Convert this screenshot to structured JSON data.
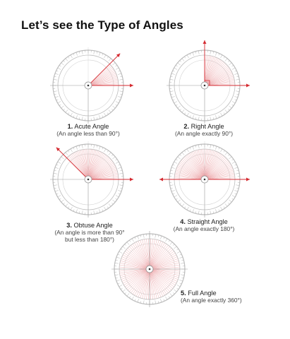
{
  "page": {
    "title": "Let’s see the Type of Angles"
  },
  "colors": {
    "ring": "#bcbcbc",
    "shade": "#e8969a",
    "ray": "#d42a30",
    "axis": "#9a9a9a"
  },
  "angles": [
    {
      "number": "1.",
      "name": "Acute Angle",
      "desc": "(An angle less than 90°)",
      "desc2": "",
      "degrees": 45
    },
    {
      "number": "2.",
      "name": "Right Angle",
      "desc": "(An angle exactly 90°)",
      "desc2": "",
      "degrees": 90
    },
    {
      "number": "3.",
      "name": "Obtuse Angle",
      "desc": "(An angle is more than  90°",
      "desc2": "but less than 180°)",
      "degrees": 135
    },
    {
      "number": "4.",
      "name": "Straight Angle",
      "desc": "(An angle exactly 180°)",
      "desc2": "",
      "degrees": 180
    },
    {
      "number": "5.",
      "name": "Full Angle",
      "desc": "(An angle exactly 360°)",
      "desc2": "",
      "degrees": 360
    }
  ]
}
